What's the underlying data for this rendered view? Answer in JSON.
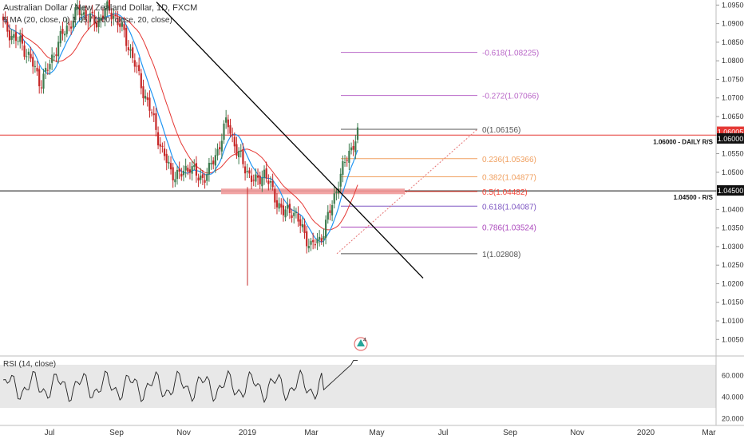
{
  "header": {
    "symbol_title": "Australian Dollar / New Zealand Dollar, 1D, FXCM",
    "ma_line": "5 MA (20, close, 0) 1.05 / (100, close, 20, close)",
    "rsi_label": "RSI (14, close)"
  },
  "colors": {
    "bull": "#26a69a",
    "bear": "#ef5350",
    "candle_bull": "#3e7c4f",
    "candle_bear": "#c62828",
    "ma_fast": "#2196f3",
    "ma_slow": "#e53935",
    "trendline": "#000000",
    "fib_ext": "#ba68c8",
    "fib_zero": "#555555",
    "fib_236": "#f0a060",
    "fib_382": "#f0a060",
    "fib_5": "#f44336",
    "fib_618": "#7e57c2",
    "fib_786": "#ab47bc",
    "fib_1": "#555555",
    "zone": "#ef9a9a",
    "rsi_line": "#222222",
    "rsi_band": "#e8e8e8",
    "price_tag_red": "#e53935",
    "price_tag_black": "#111111"
  },
  "chart_data": {
    "type": "candlestick",
    "price_axis": {
      "ylim": [
        1.0027,
        1.0955
      ],
      "ticks": [
        "1.09500",
        "1.09000",
        "1.08500",
        "1.08000",
        "1.07500",
        "1.07000",
        "1.06500",
        "1.06000",
        "1.05500",
        "1.05000",
        "1.04500",
        "1.04000",
        "1.03500",
        "1.03000",
        "1.02500",
        "1.02000",
        "1.01500",
        "1.01000",
        "1.00500"
      ]
    },
    "time_axis": {
      "labels": [
        "Jul",
        "Sep",
        "Nov",
        "2019",
        "Mar",
        "May",
        "Jul",
        "Sep",
        "Nov",
        "2020",
        "Mar"
      ]
    },
    "current_price": "1.06005",
    "levels": [
      {
        "price": 1.06,
        "tag": "1.06000",
        "label": "1.06000 - DAILY R/S",
        "color": "#e53935"
      },
      {
        "price": 1.045,
        "tag": "1.04500",
        "label": "1.04500 - R/S",
        "color": "#111111"
      }
    ],
    "fibonacci": [
      {
        "ratio": "-0.618",
        "price": "1.08225",
        "text": "-0.618(1.08225)"
      },
      {
        "ratio": "-0.272",
        "price": "1.07066",
        "text": "-0.272(1.07066)"
      },
      {
        "ratio": "0",
        "price": "1.06156",
        "text": "0(1.06156)"
      },
      {
        "ratio": "0.236",
        "price": "1.05366",
        "text": "0.236(1.05366)"
      },
      {
        "ratio": "0.382",
        "price": "1.04877",
        "text": "0.382(1.04877)"
      },
      {
        "ratio": "0.5",
        "price": "1.04482",
        "text": "0.5(1.04482)"
      },
      {
        "ratio": "0.618",
        "price": "1.04087",
        "text": "0.618(1.04087)"
      },
      {
        "ratio": "0.786",
        "price": "1.03524",
        "text": "0.786(1.03524)"
      },
      {
        "ratio": "1",
        "price": "1.02808",
        "text": "1(1.02808)"
      }
    ],
    "trendline": {
      "from": {
        "date": "2018-09-10",
        "price": 1.096
      },
      "to": {
        "date": "2019-05-15",
        "price": 1.0215
      }
    },
    "zone": {
      "price_top": 1.0456,
      "price_bottom": 1.0441
    },
    "price_path": [
      [
        1.0905,
        1.09
      ],
      [
        1.09,
        1.0865
      ],
      [
        1.079,
        1.0845
      ],
      [
        1.076,
        1.08
      ],
      [
        1.07,
        1.074
      ],
      [
        1.068,
        1.079
      ],
      [
        1.082,
        1.0855
      ],
      [
        1.087,
        1.0895
      ],
      [
        1.09,
        1.0935
      ],
      [
        1.088,
        1.092
      ],
      [
        1.087,
        1.09
      ],
      [
        1.09,
        1.094
      ],
      [
        1.0945,
        1.092
      ],
      [
        1.091,
        1.087
      ],
      [
        1.085,
        1.08
      ],
      [
        1.078,
        1.072
      ],
      [
        1.07,
        1.065
      ],
      [
        1.062,
        1.056
      ],
      [
        1.054,
        1.05
      ],
      [
        1.046,
        1.049
      ],
      [
        1.05,
        1.052
      ],
      [
        1.053,
        1.048
      ],
      [
        1.045,
        1.05
      ],
      [
        1.052,
        1.056
      ],
      [
        1.06,
        1.064
      ],
      [
        1.061,
        1.056
      ],
      [
        1.054,
        1.051
      ],
      [
        1.05,
        1.047
      ],
      [
        1.048,
        1.05
      ],
      [
        1.05,
        1.044
      ],
      [
        1.042,
        1.039
      ],
      [
        1.038,
        1.04
      ],
      [
        1.039,
        1.035
      ],
      [
        1.033,
        1.03
      ],
      [
        1.029,
        1.032
      ],
      [
        1.033,
        1.039
      ],
      [
        1.043,
        1.048
      ],
      [
        1.05,
        1.055
      ],
      [
        1.057,
        1.06
      ]
    ],
    "rsi": {
      "ylim": [
        20,
        80
      ],
      "ticks": [
        "60.0000",
        "40.0000",
        "20.0000"
      ],
      "band": [
        30,
        70
      ],
      "current": "74.4"
    }
  }
}
